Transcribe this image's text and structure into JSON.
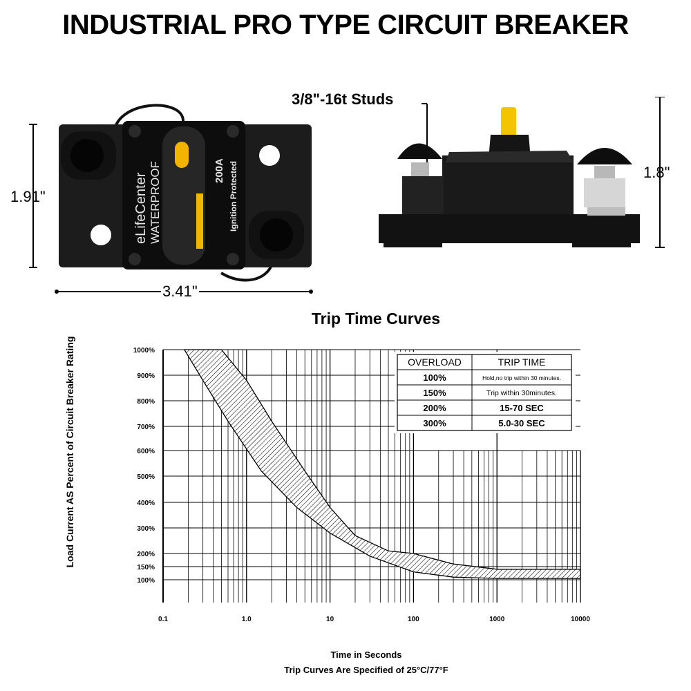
{
  "title": "INDUSTRIAL PRO TYPE CIRCUIT BREAKER",
  "product": {
    "brand": "eLifeCenter",
    "waterproof": "WATERPROOF",
    "rating": "200A",
    "protection": "Ignition Protected"
  },
  "dimensions": {
    "height_front": "1.91\"",
    "width": "3.41\"",
    "height_side": "1.8\"",
    "studs": "3/8\"-16t Studs"
  },
  "chart_data": {
    "type": "area",
    "title": "Trip Time Curves",
    "xlabel": "Time in Seconds",
    "xlabel_note": "Trip Curves Are Specified of 25°C/77°F",
    "ylabel": "Load Current AS Percent of Circuit Breaker Rating",
    "x_scale": "log",
    "x_ticks": [
      "0.1",
      "1.0",
      "10",
      "100",
      "1000",
      "10000"
    ],
    "y_ticks": [
      "1000%",
      "900%",
      "800%",
      "700%",
      "600%",
      "500%",
      "400%",
      "300%",
      "200%",
      "150%",
      "100%"
    ],
    "xlim": [
      0.1,
      10000
    ],
    "grid": true,
    "band": {
      "upper": [
        [
          0.5,
          1000
        ],
        [
          1,
          880
        ],
        [
          2,
          720
        ],
        [
          5,
          520
        ],
        [
          10,
          380
        ],
        [
          20,
          270
        ],
        [
          50,
          210
        ],
        [
          100,
          200
        ],
        [
          300,
          160
        ],
        [
          1000,
          140
        ],
        [
          10000,
          140
        ]
      ],
      "lower": [
        [
          0.18,
          1000
        ],
        [
          0.3,
          880
        ],
        [
          0.6,
          720
        ],
        [
          1.5,
          520
        ],
        [
          4,
          380
        ],
        [
          10,
          280
        ],
        [
          30,
          190
        ],
        [
          100,
          130
        ],
        [
          300,
          110
        ],
        [
          1000,
          105
        ],
        [
          10000,
          105
        ]
      ]
    },
    "table": {
      "headers": [
        "OVERLOAD",
        "TRIP TIME"
      ],
      "rows": [
        [
          "100%",
          "Hold,no trip within 30 minutes."
        ],
        [
          "150%",
          "Trip within 30minutes."
        ],
        [
          "200%",
          "15-70 SEC"
        ],
        [
          "300%",
          "5.0-30 SEC"
        ]
      ]
    }
  }
}
